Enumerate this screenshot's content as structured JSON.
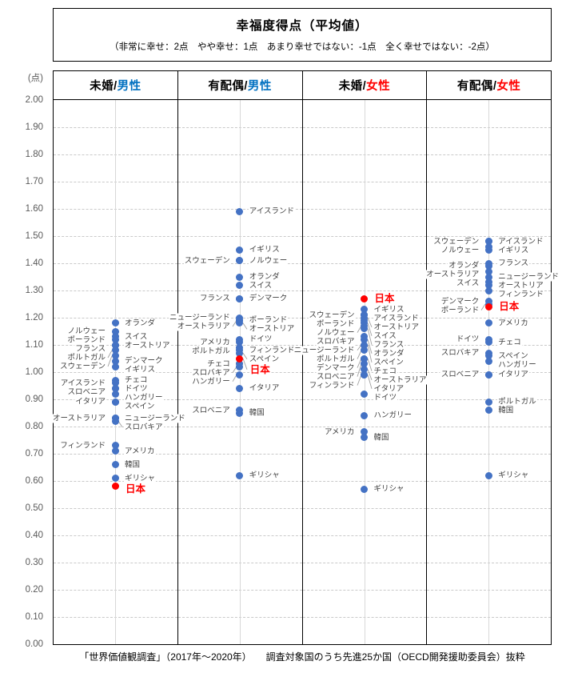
{
  "header": {
    "title": "幸福度得点（平均値）",
    "subtitle": "（非常に幸せ：2点　やや幸せ：1点　あまり幸せではない：-1点　全く幸せではない：-2点）"
  },
  "axis": {
    "unit": "(点)"
  },
  "footer": {
    "text": "「世界価値観調査」（2017年～2020年）　　調査対象国のうち先進25か国（OECD開発援助委員会）抜粋"
  },
  "colors": {
    "dot_blue": "#4472C4",
    "japan_red": "#FF0000",
    "male_blue": "#0070C0",
    "female_red": "#FF0000",
    "gridline": "#c9c9c9",
    "leader_line": "#a0a0a0"
  },
  "chart_data": {
    "type": "scatter",
    "title": "幸福度得点（平均値）",
    "ylabel": "(点)",
    "ylim": [
      0.0,
      2.0
    ],
    "ytick_step": 0.1,
    "grid": "dashed-horizontal",
    "yticks": [
      "2.00",
      "1.90",
      "1.80",
      "1.70",
      "1.60",
      "1.50",
      "1.40",
      "1.30",
      "1.20",
      "1.10",
      "1.00",
      "0.90",
      "0.80",
      "0.70",
      "0.60",
      "0.50",
      "0.40",
      "0.30",
      "0.20",
      "0.10",
      "0.00"
    ],
    "groups": [
      {
        "label_prefix": "未婚/",
        "label_suffix": "男性",
        "suffix_color": "#0070C0",
        "points": [
          {
            "name": "オランダ",
            "value": 1.18,
            "side": "right"
          },
          {
            "name": "ノルウェー",
            "value": 1.15,
            "side": "left"
          },
          {
            "name": "スイス",
            "value": 1.13,
            "side": "right"
          },
          {
            "name": "ポーランド",
            "value": 1.12,
            "side": "left"
          },
          {
            "name": "オーストリア",
            "value": 1.1,
            "side": "right"
          },
          {
            "name": "フランス",
            "value": 1.1,
            "side": "left"
          },
          {
            "name": "ポルトガル",
            "value": 1.08,
            "side": "left"
          },
          {
            "name": "スウェーデン",
            "value": 1.06,
            "side": "left"
          },
          {
            "name": "デンマーク",
            "value": 1.04,
            "side": "right"
          },
          {
            "name": "イギリス",
            "value": 1.02,
            "side": "right"
          },
          {
            "name": "チェコ",
            "value": 0.97,
            "side": "right"
          },
          {
            "name": "アイスランド",
            "value": 0.96,
            "side": "left"
          },
          {
            "name": "ドイツ",
            "value": 0.94,
            "side": "right"
          },
          {
            "name": "スロベニア",
            "value": 0.94,
            "side": "left"
          },
          {
            "name": "ハンガリー",
            "value": 0.92,
            "side": "right"
          },
          {
            "name": "スペイン",
            "value": 0.89,
            "side": "right"
          },
          {
            "name": "イタリア",
            "value": 0.89,
            "side": "left"
          },
          {
            "name": "ニュージーランド",
            "value": 0.83,
            "side": "right"
          },
          {
            "name": "オーストラリア",
            "value": 0.83,
            "side": "left"
          },
          {
            "name": "スロバキア",
            "value": 0.82,
            "side": "right"
          },
          {
            "name": "フィンランド",
            "value": 0.73,
            "side": "left"
          },
          {
            "name": "アメリカ",
            "value": 0.71,
            "side": "right"
          },
          {
            "name": "韓国",
            "value": 0.66,
            "side": "right"
          },
          {
            "name": "ギリシャ",
            "value": 0.61,
            "side": "right"
          },
          {
            "name": "日本",
            "value": 0.58,
            "side": "right",
            "japan": true
          }
        ]
      },
      {
        "label_prefix": "有配偶/",
        "label_suffix": "男性",
        "suffix_color": "#0070C0",
        "points": [
          {
            "name": "アイスランド",
            "value": 1.59,
            "side": "right"
          },
          {
            "name": "イギリス",
            "value": 1.45,
            "side": "right"
          },
          {
            "name": "ノルウェー",
            "value": 1.41,
            "side": "right"
          },
          {
            "name": "スウェーデン",
            "value": 1.41,
            "side": "left"
          },
          {
            "name": "オランダ",
            "value": 1.35,
            "side": "right"
          },
          {
            "name": "スイス",
            "value": 1.32,
            "side": "right"
          },
          {
            "name": "デンマーク",
            "value": 1.27,
            "side": "right"
          },
          {
            "name": "フランス",
            "value": 1.27,
            "side": "left"
          },
          {
            "name": "ニュージーランド",
            "value": 1.2,
            "side": "left"
          },
          {
            "name": "ポーランド",
            "value": 1.19,
            "side": "right"
          },
          {
            "name": "オーストラリア",
            "value": 1.19,
            "side": "left"
          },
          {
            "name": "オーストリア",
            "value": 1.18,
            "side": "right"
          },
          {
            "name": "ドイツ",
            "value": 1.12,
            "side": "right"
          },
          {
            "name": "アメリカ",
            "value": 1.11,
            "side": "left"
          },
          {
            "name": "ポルトガル",
            "value": 1.09,
            "side": "left"
          },
          {
            "name": "フィンランド",
            "value": 1.08,
            "side": "right"
          },
          {
            "name": "スペイン",
            "value": 1.07,
            "side": "right"
          },
          {
            "name": "日本",
            "value": 1.05,
            "side": "right",
            "japan": true
          },
          {
            "name": "チェコ",
            "value": 1.03,
            "side": "left"
          },
          {
            "name": "スロバキア",
            "value": 1.02,
            "side": "left"
          },
          {
            "name": "ハンガリー",
            "value": 0.99,
            "side": "left"
          },
          {
            "name": "イタリア",
            "value": 0.94,
            "side": "right"
          },
          {
            "name": "スロベニア",
            "value": 0.86,
            "side": "left"
          },
          {
            "name": "韓国",
            "value": 0.85,
            "side": "right"
          },
          {
            "name": "ギリシャ",
            "value": 0.62,
            "side": "right"
          }
        ]
      },
      {
        "label_prefix": "未婚/",
        "label_suffix": "女性",
        "suffix_color": "#FF0000",
        "points": [
          {
            "name": "日本",
            "value": 1.27,
            "side": "right",
            "japan": true
          },
          {
            "name": "イギリス",
            "value": 1.23,
            "side": "right"
          },
          {
            "name": "アイスランド",
            "value": 1.21,
            "side": "right"
          },
          {
            "name": "スウェーデン",
            "value": 1.21,
            "side": "left"
          },
          {
            "name": "オーストリア",
            "value": 1.2,
            "side": "right"
          },
          {
            "name": "ポーランド",
            "value": 1.19,
            "side": "left"
          },
          {
            "name": "スイス",
            "value": 1.18,
            "side": "right"
          },
          {
            "name": "ノルウェー",
            "value": 1.17,
            "side": "left"
          },
          {
            "name": "フランス",
            "value": 1.16,
            "side": "right"
          },
          {
            "name": "スロバキア",
            "value": 1.13,
            "side": "left"
          },
          {
            "name": "オランダ",
            "value": 1.12,
            "side": "right"
          },
          {
            "name": "ニュージーランド",
            "value": 1.1,
            "side": "left"
          },
          {
            "name": "スペイン",
            "value": 1.1,
            "side": "right"
          },
          {
            "name": "ポルトガル",
            "value": 1.08,
            "side": "left"
          },
          {
            "name": "チェコ",
            "value": 1.05,
            "side": "right"
          },
          {
            "name": "デンマーク",
            "value": 1.05,
            "side": "left"
          },
          {
            "name": "スロベニア",
            "value": 1.03,
            "side": "left"
          },
          {
            "name": "オーストラリア",
            "value": 1.01,
            "side": "right"
          },
          {
            "name": "フィンランド",
            "value": 0.99,
            "side": "left"
          },
          {
            "name": "イタリア",
            "value": 0.99,
            "side": "right"
          },
          {
            "name": "ドイツ",
            "value": 0.92,
            "side": "right"
          },
          {
            "name": "ハンガリー",
            "value": 0.84,
            "side": "right"
          },
          {
            "name": "アメリカ",
            "value": 0.78,
            "side": "left"
          },
          {
            "name": "韓国",
            "value": 0.76,
            "side": "right"
          },
          {
            "name": "ギリシャ",
            "value": 0.57,
            "side": "right"
          }
        ]
      },
      {
        "label_prefix": "有配偶/",
        "label_suffix": "女性",
        "suffix_color": "#FF0000",
        "points": [
          {
            "name": "スウェーデン",
            "value": 1.48,
            "side": "left"
          },
          {
            "name": "アイスランド",
            "value": 1.48,
            "side": "right"
          },
          {
            "name": "ノルウェー",
            "value": 1.46,
            "side": "left"
          },
          {
            "name": "イギリス",
            "value": 1.45,
            "side": "right"
          },
          {
            "name": "フランス",
            "value": 1.4,
            "side": "right"
          },
          {
            "name": "オランダ",
            "value": 1.39,
            "side": "left"
          },
          {
            "name": "オーストラリア",
            "value": 1.37,
            "side": "left"
          },
          {
            "name": "ニュージーランド",
            "value": 1.35,
            "side": "right"
          },
          {
            "name": "スイス",
            "value": 1.33,
            "side": "left"
          },
          {
            "name": "オーストリア",
            "value": 1.32,
            "side": "right"
          },
          {
            "name": "フィンランド",
            "value": 1.3,
            "side": "right"
          },
          {
            "name": "デンマーク",
            "value": 1.26,
            "side": "left"
          },
          {
            "name": "ポーランド",
            "value": 1.25,
            "side": "left"
          },
          {
            "name": "日本",
            "value": 1.24,
            "side": "right",
            "japan": true
          },
          {
            "name": "アメリカ",
            "value": 1.18,
            "side": "right"
          },
          {
            "name": "ドイツ",
            "value": 1.12,
            "side": "left"
          },
          {
            "name": "チェコ",
            "value": 1.11,
            "side": "right"
          },
          {
            "name": "スロバキア",
            "value": 1.07,
            "side": "left"
          },
          {
            "name": "スペイン",
            "value": 1.06,
            "side": "right"
          },
          {
            "name": "ハンガリー",
            "value": 1.04,
            "side": "right"
          },
          {
            "name": "スロベニア",
            "value": 0.99,
            "side": "left"
          },
          {
            "name": "イタリア",
            "value": 0.99,
            "side": "right"
          },
          {
            "name": "ポルトガル",
            "value": 0.89,
            "side": "right"
          },
          {
            "name": "韓国",
            "value": 0.86,
            "side": "right"
          },
          {
            "name": "ギリシャ",
            "value": 0.62,
            "side": "right"
          }
        ]
      }
    ]
  }
}
